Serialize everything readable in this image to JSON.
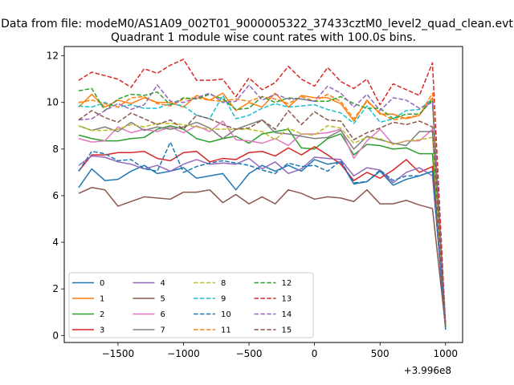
{
  "chart_data": {
    "type": "line",
    "suptitle": "Data from file: modeM0/AS1A09_002T01_9000005322_37433cztM0_level2_quad_clean.evt",
    "title": "Quadrant 1 module wise count rates with 100.0s bins.",
    "xlabel": "",
    "ylabel": "",
    "offset_text": "+3.996e8",
    "xlim": [
      -1910,
      1130
    ],
    "ylim": [
      -0.3,
      12.4
    ],
    "xticks": [
      -1500,
      -1000,
      -500,
      0,
      500,
      1000
    ],
    "xtick_labels": [
      "−1500",
      "−1000",
      "−500",
      "0",
      "500",
      "1000"
    ],
    "yticks": [
      0,
      2,
      4,
      6,
      8,
      10,
      12
    ],
    "ytick_labels": [
      "0",
      "2",
      "4",
      "6",
      "8",
      "10",
      "12"
    ],
    "x": [
      -1800,
      -1700,
      -1600,
      -1500,
      -1400,
      -1300,
      -1200,
      -1100,
      -1000,
      -900,
      -800,
      -700,
      -600,
      -500,
      -400,
      -300,
      -200,
      -100,
      0,
      100,
      200,
      300,
      400,
      500,
      600,
      700,
      800,
      900,
      1000
    ],
    "legend_position": "lower-left",
    "legend_columns": 4,
    "series": [
      {
        "name": "0",
        "color": "#1f77b4",
        "dash": "solid",
        "values": [
          6.35,
          7.15,
          6.65,
          6.7,
          7.05,
          7.3,
          6.95,
          7.05,
          7.2,
          6.75,
          6.85,
          6.95,
          6.25,
          6.95,
          7.3,
          7.05,
          7.3,
          7.05,
          7.55,
          7.35,
          7.45,
          6.5,
          6.6,
          7.05,
          6.45,
          6.7,
          6.85,
          7.05,
          0.25
        ]
      },
      {
        "name": "1",
        "color": "#ff7f0e",
        "dash": "solid",
        "values": [
          9.8,
          10.35,
          9.8,
          10.1,
          9.95,
          10.2,
          10.0,
          10.0,
          9.8,
          10.3,
          10.1,
          10.4,
          9.65,
          10.0,
          9.8,
          10.4,
          9.8,
          10.3,
          10.2,
          10.2,
          9.95,
          9.2,
          10.1,
          9.5,
          9.5,
          9.3,
          9.45,
          10.2,
          0.4
        ]
      },
      {
        "name": "2",
        "color": "#2ca02c",
        "dash": "solid",
        "values": [
          8.6,
          8.45,
          8.35,
          8.35,
          8.45,
          8.5,
          8.85,
          9.0,
          8.85,
          8.45,
          8.3,
          8.45,
          8.55,
          8.25,
          8.65,
          8.75,
          8.85,
          8.05,
          8.0,
          8.45,
          8.65,
          7.75,
          8.2,
          8.15,
          8.0,
          8.05,
          7.8,
          7.8,
          0.35
        ]
      },
      {
        "name": "3",
        "color": "#d62728",
        "dash": "solid",
        "values": [
          7.05,
          7.75,
          7.75,
          7.85,
          7.85,
          7.9,
          7.6,
          7.5,
          7.85,
          7.9,
          7.45,
          7.6,
          7.55,
          7.85,
          7.9,
          7.7,
          8.05,
          7.75,
          8.1,
          7.75,
          7.35,
          6.65,
          7.0,
          6.75,
          7.1,
          7.55,
          7.0,
          7.25,
          0.35
        ]
      },
      {
        "name": "4",
        "color": "#9467bd",
        "dash": "solid",
        "values": [
          7.3,
          7.7,
          7.65,
          7.45,
          7.35,
          7.15,
          7.3,
          7.05,
          7.35,
          7.55,
          7.35,
          7.4,
          7.35,
          7.6,
          7.15,
          7.45,
          6.95,
          7.15,
          7.65,
          7.6,
          7.55,
          6.85,
          7.2,
          7.1,
          6.55,
          7.0,
          7.2,
          6.85,
          0.4
        ]
      },
      {
        "name": "5",
        "color": "#8c564b",
        "dash": "solid",
        "values": [
          6.1,
          6.35,
          6.25,
          5.55,
          5.75,
          5.95,
          5.9,
          5.85,
          6.15,
          6.15,
          6.25,
          5.7,
          6.05,
          5.65,
          5.95,
          5.65,
          6.25,
          6.1,
          5.85,
          5.95,
          5.9,
          5.75,
          6.25,
          5.65,
          5.65,
          5.8,
          5.6,
          5.45,
          0.35
        ]
      },
      {
        "name": "6",
        "color": "#e377c2",
        "dash": "solid",
        "values": [
          8.45,
          8.3,
          8.35,
          8.95,
          8.7,
          8.85,
          8.75,
          8.95,
          8.7,
          9.0,
          8.75,
          9.2,
          8.4,
          8.35,
          8.25,
          8.45,
          8.15,
          8.65,
          8.65,
          8.7,
          8.85,
          7.6,
          8.35,
          8.85,
          8.2,
          8.35,
          8.35,
          8.85,
          0.4
        ]
      },
      {
        "name": "7",
        "color": "#7f7f7f",
        "dash": "solid",
        "values": [
          9.0,
          8.8,
          8.95,
          8.75,
          9.15,
          8.8,
          8.95,
          8.85,
          8.95,
          9.15,
          8.9,
          8.45,
          8.85,
          9.05,
          9.25,
          8.7,
          8.65,
          8.55,
          8.45,
          8.5,
          8.8,
          8.0,
          8.55,
          8.4,
          8.25,
          8.15,
          8.75,
          8.75,
          0.4
        ]
      },
      {
        "name": "8",
        "color": "#bcbd22",
        "dash": "dashed",
        "values": [
          9.0,
          8.8,
          8.8,
          8.85,
          9.05,
          8.95,
          9.1,
          9.1,
          9.05,
          8.95,
          8.85,
          8.85,
          8.85,
          8.85,
          8.75,
          8.4,
          8.9,
          8.65,
          8.6,
          9.0,
          8.9,
          8.25,
          8.5,
          8.45,
          8.2,
          8.35,
          8.4,
          8.5,
          0.35
        ]
      },
      {
        "name": "9",
        "color": "#17becf",
        "dash": "dashed",
        "values": [
          9.85,
          9.8,
          10.0,
          9.8,
          9.9,
          9.75,
          9.75,
          9.95,
          9.85,
          9.45,
          9.3,
          10.3,
          9.3,
          9.45,
          9.75,
          9.95,
          9.8,
          9.85,
          9.9,
          9.7,
          9.55,
          9.1,
          9.85,
          9.15,
          9.3,
          9.65,
          9.7,
          10.15,
          0.4
        ]
      },
      {
        "name": "10",
        "color": "#1f77b4",
        "dash": "dashed",
        "values": [
          7.05,
          7.9,
          7.8,
          7.5,
          7.55,
          7.15,
          7.05,
          8.3,
          7.0,
          7.25,
          7.4,
          7.5,
          7.4,
          7.3,
          7.1,
          6.95,
          7.4,
          7.25,
          7.3,
          7.05,
          7.5,
          6.55,
          6.6,
          7.1,
          6.65,
          6.85,
          6.85,
          7.05,
          0.3
        ]
      },
      {
        "name": "11",
        "color": "#ff7f0e",
        "dash": "dashed",
        "values": [
          10.0,
          10.1,
          9.95,
          9.8,
          10.2,
          10.25,
          9.95,
          9.85,
          10.15,
          10.2,
          10.1,
          10.05,
          10.15,
          10.05,
          10.25,
          10.15,
          9.95,
          10.25,
          10.05,
          10.35,
          10.05,
          9.3,
          10.05,
          9.55,
          9.25,
          9.35,
          9.45,
          10.4,
          0.4
        ]
      },
      {
        "name": "12",
        "color": "#2ca02c",
        "dash": "dashed",
        "values": [
          10.5,
          10.6,
          9.65,
          10.15,
          10.35,
          10.3,
          10.45,
          9.9,
          10.2,
          10.15,
          10.35,
          10.15,
          9.7,
          9.75,
          10.25,
          10.0,
          10.2,
          10.15,
          10.05,
          10.05,
          10.25,
          9.95,
          9.75,
          9.75,
          9.3,
          9.5,
          9.5,
          10.1,
          0.4
        ]
      },
      {
        "name": "13",
        "color": "#d62728",
        "dash": "dashed",
        "values": [
          10.95,
          11.3,
          11.15,
          11.0,
          10.65,
          11.45,
          11.25,
          11.6,
          11.85,
          10.95,
          10.95,
          11.0,
          10.25,
          11.05,
          10.55,
          10.85,
          11.55,
          11.0,
          10.7,
          11.5,
          10.9,
          10.6,
          11.0,
          9.9,
          10.8,
          10.55,
          10.3,
          11.7,
          0.4
        ]
      },
      {
        "name": "14",
        "color": "#9467bd",
        "dash": "dashed",
        "values": [
          9.25,
          9.3,
          9.65,
          9.95,
          9.7,
          9.9,
          10.75,
          10.05,
          10.0,
          10.2,
          10.4,
          10.0,
          10.05,
          10.75,
          10.1,
          10.35,
          10.15,
          10.15,
          10.05,
          10.7,
          10.4,
          9.8,
          10.35,
          9.65,
          10.2,
          10.1,
          9.75,
          10.0,
          0.45
        ]
      },
      {
        "name": "15",
        "color": "#8c564b",
        "dash": "dashed",
        "values": [
          9.25,
          9.65,
          9.35,
          9.15,
          9.55,
          9.3,
          9.05,
          9.25,
          8.85,
          9.45,
          9.3,
          9.05,
          8.85,
          8.9,
          9.25,
          8.85,
          9.65,
          9.05,
          9.6,
          9.25,
          9.2,
          8.4,
          8.7,
          8.9,
          9.15,
          9.05,
          9.2,
          8.95,
          0.35
        ]
      }
    ]
  }
}
